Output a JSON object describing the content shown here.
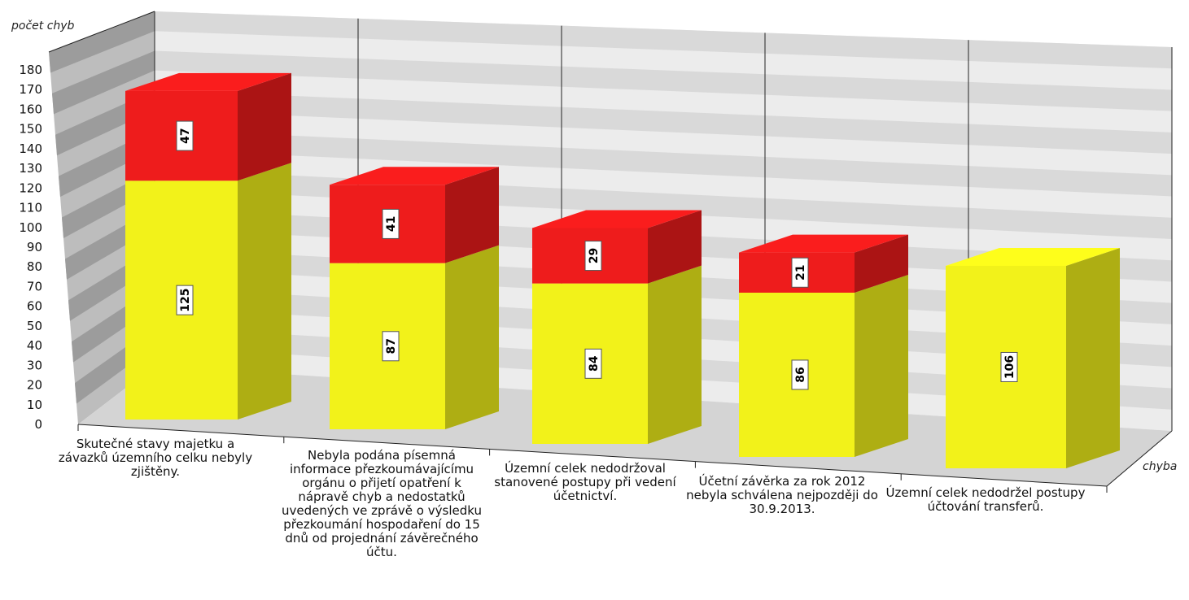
{
  "chart_data": {
    "type": "bar",
    "stacked": true,
    "three_d": true,
    "ylabel": "počet chyb",
    "xlabel": "chyba",
    "ylim": [
      0,
      180
    ],
    "ytick_step": 10,
    "grid": true,
    "categories": [
      "Skutečné stavy majetku a závazků  územního celku nebyly zjištěny.",
      "Nebyla podána písemná informace přezkoumávajícímu orgánu o přijetí opatření k nápravě chyb a nedostatků uvedených ve zprávě o výsledku přezkoumání hospodaření do 15 dnů od projednání závěrečného účtu.",
      "Územní celek nedodržoval stanovené postupy při vedení účetnictví.",
      "Účetní závěrka za rok 2012 nebyla schválena nejpozději do 30.9.2013.",
      "Územní celek nedodržel postupy účtování transferů."
    ],
    "series": [
      {
        "color": "#f2f21a",
        "values": [
          125,
          87,
          84,
          86,
          106
        ]
      },
      {
        "color": "#ee1c1c",
        "values": [
          47,
          41,
          29,
          21,
          null
        ]
      }
    ]
  }
}
